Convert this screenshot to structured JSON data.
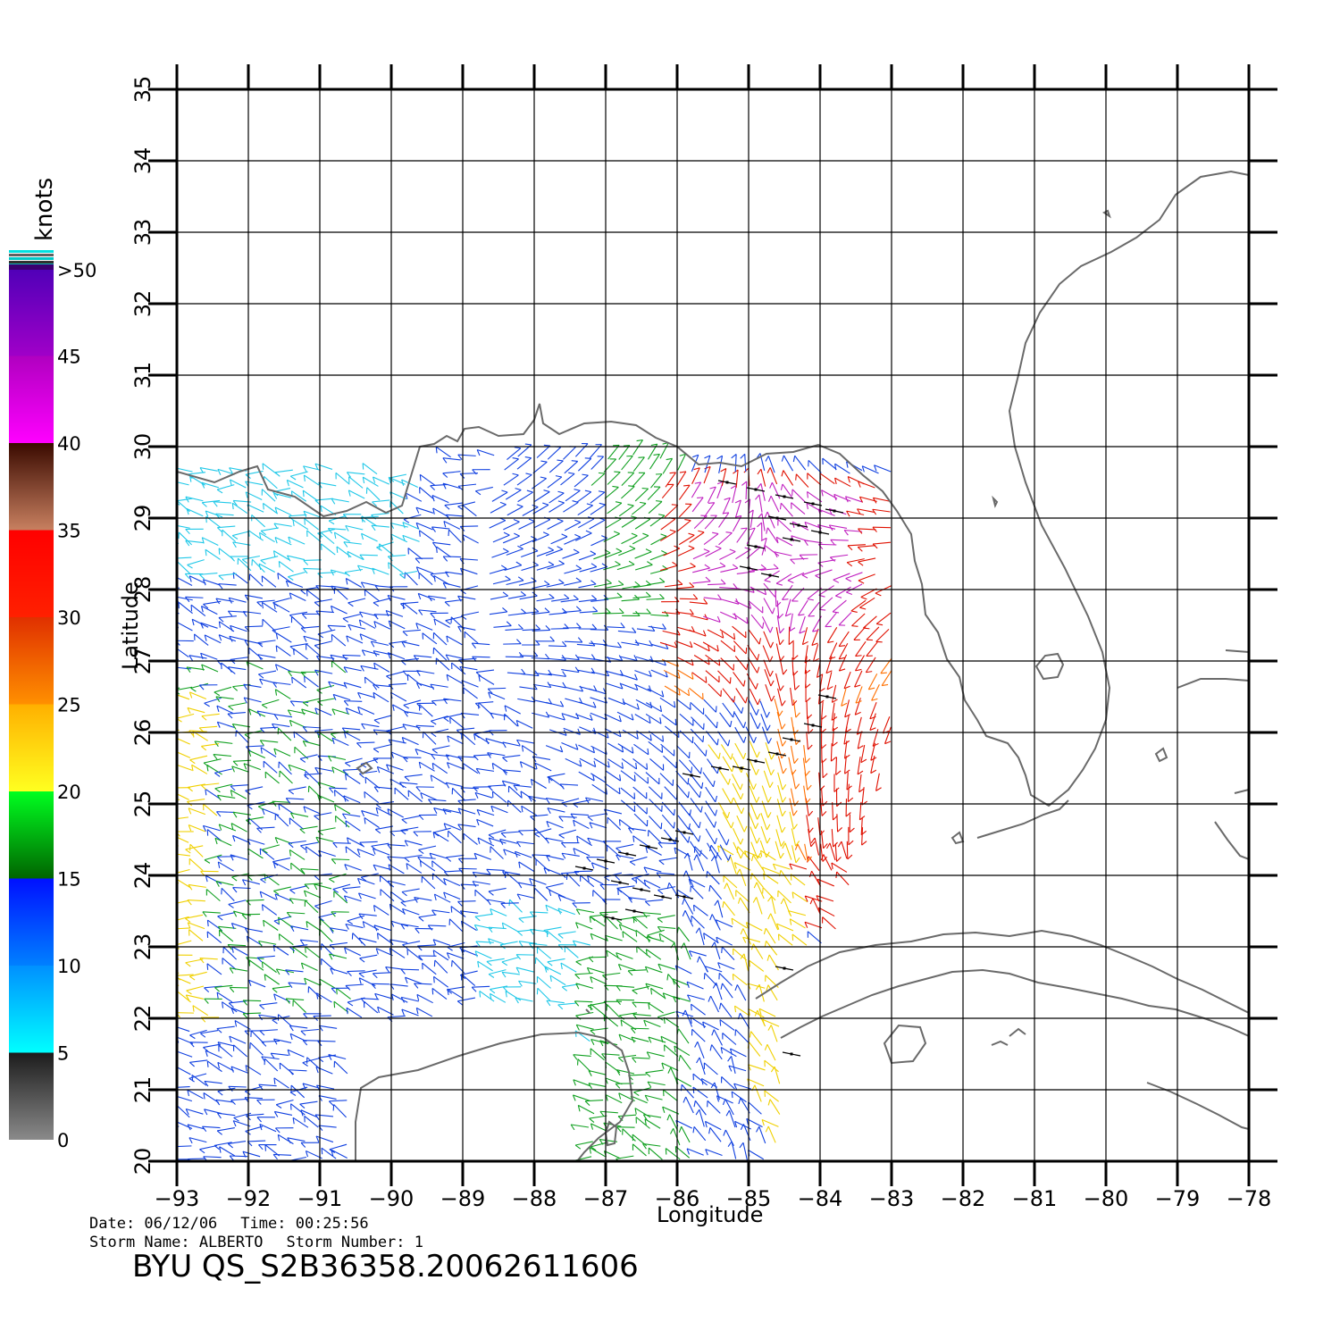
{
  "map": {
    "units_label": "knots",
    "xlabel": "Longitude",
    "ylabel": "Latitude",
    "lon_ticks": [
      -93,
      -92,
      -91,
      -90,
      -89,
      -88,
      -87,
      -86,
      -85,
      -84,
      -83,
      -82,
      -81,
      -80,
      -79,
      -78
    ],
    "lat_ticks": [
      20,
      21,
      22,
      23,
      24,
      25,
      26,
      27,
      28,
      29,
      30,
      31,
      32,
      33,
      34,
      35
    ],
    "lon_range": [
      -93,
      -78
    ],
    "lat_range": [
      20,
      35
    ],
    "grid": true,
    "coastline_color": "#666666"
  },
  "colorbar": {
    "segments": [
      {
        "label": "0",
        "from": 0,
        "to": 5,
        "colors": [
          "#8a8a8a",
          "#1c1c1c"
        ]
      },
      {
        "label": "5",
        "from": 5,
        "to": 10,
        "colors": [
          "#00ffff",
          "#0090ff"
        ]
      },
      {
        "label": "10",
        "from": 10,
        "to": 15,
        "colors": [
          "#0080ff",
          "#0010ff"
        ]
      },
      {
        "label": "15",
        "from": 15,
        "to": 20,
        "colors": [
          "#006400",
          "#00ff20"
        ]
      },
      {
        "label": "20",
        "from": 20,
        "to": 25,
        "colors": [
          "#ffff20",
          "#ffb000"
        ]
      },
      {
        "label": "25",
        "from": 25,
        "to": 30,
        "colors": [
          "#ff9000",
          "#e03000"
        ]
      },
      {
        "label": "30",
        "from": 30,
        "to": 35,
        "colors": [
          "#ff2000",
          "#ff0000"
        ]
      },
      {
        "label": "35",
        "from": 35,
        "to": 40,
        "colors": [
          "#c88060",
          "#3a0a00"
        ]
      },
      {
        "label": "40",
        "from": 40,
        "to": 45,
        "colors": [
          "#ff00ff",
          "#b000c0"
        ]
      },
      {
        "label": "45",
        "from": 45,
        "to": 50,
        "colors": [
          "#a000c8",
          "#5000b8"
        ]
      },
      {
        "label": ">50",
        "from": 50,
        "to": 55,
        "colors": [
          "#222222",
          "#00ffff"
        ]
      }
    ]
  },
  "info": {
    "date_label": "Date: 06/12/06",
    "time_label": "Time: 00:25:56",
    "storm_name_label": "Storm Name: ALBERTO",
    "storm_number_label": "Storm Number: 1",
    "product_id": "BYU QS_S2B36358.20062611606"
  },
  "wind_field": {
    "speed_bands": [
      {
        "range": "5-10",
        "color": "#20c8e8"
      },
      {
        "range": "10-15",
        "color": "#1040e0"
      },
      {
        "range": "15-20",
        "color": "#10a020"
      },
      {
        "range": "20-25",
        "color": "#f0d000"
      },
      {
        "range": "25-30",
        "color": "#ff7000"
      },
      {
        "range": "30-35",
        "color": "#e01000"
      },
      {
        "range": "40-45",
        "color": "#c020c0"
      },
      {
        "range": ">50",
        "color": "#000000"
      }
    ]
  }
}
